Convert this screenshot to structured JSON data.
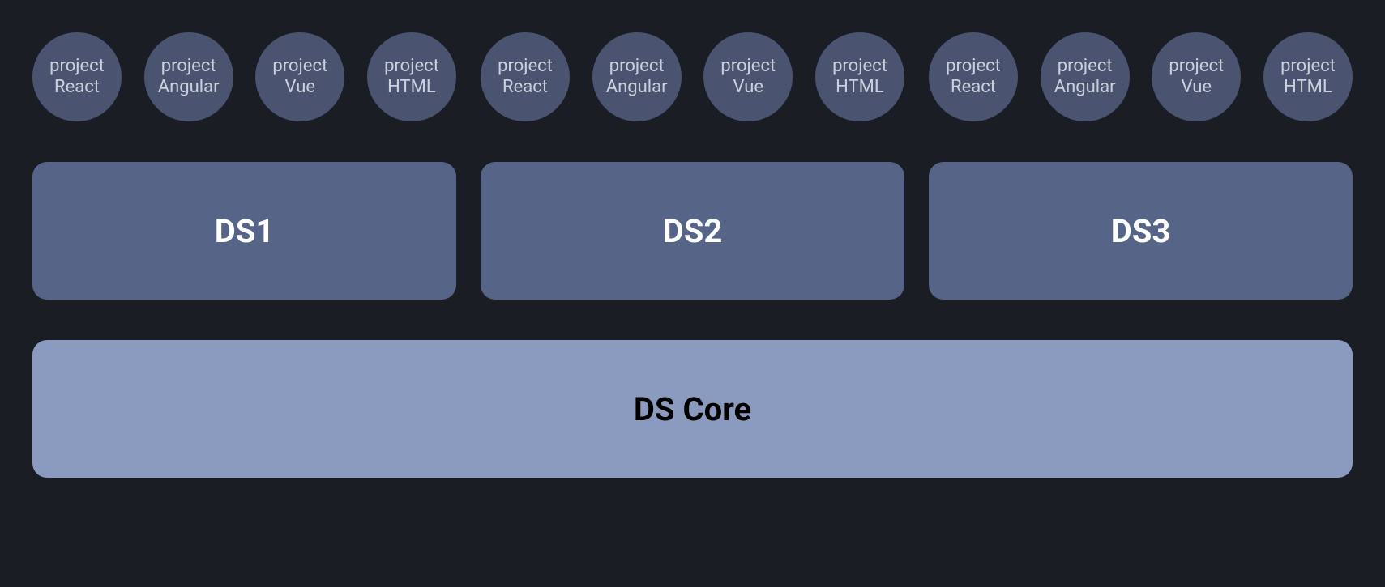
{
  "diagram": {
    "type": "infographic",
    "background_color": "#1a1d23",
    "circle_color": "#4a5470",
    "circle_text_color": "#c9d1dd",
    "ds_box_color": "#556487",
    "ds_box_text_color": "#ffffff",
    "core_box_color": "#8b9bc0",
    "core_box_text_color": "#000000",
    "border_radius": 18,
    "circle_diameter": 110,
    "row_gap": 50,
    "group_gap": 30,
    "circle_fontsize": 22,
    "ds_fontsize": 40,
    "core_fontsize": 40,
    "project_label_top": "project",
    "groups": [
      {
        "ds_label": "DS1",
        "projects": [
          "React",
          "Angular",
          "Vue",
          "HTML"
        ]
      },
      {
        "ds_label": "DS2",
        "projects": [
          "React",
          "Angular",
          "Vue",
          "HTML"
        ]
      },
      {
        "ds_label": "DS3",
        "projects": [
          "React",
          "Angular",
          "Vue",
          "HTML"
        ]
      }
    ],
    "core_label": "DS Core"
  }
}
